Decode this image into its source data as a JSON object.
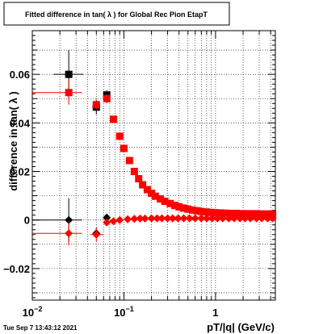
{
  "title": "Fitted difference in tan( λ ) for Global Rec Pion EtapT",
  "timestamp": "Tue Sep  7 13:43:12 2021",
  "colors": {
    "black": "#000000",
    "red": "#ff0000",
    "grid": "#000000"
  },
  "chart_data": {
    "type": "scatter",
    "title": "Fitted difference in tan( λ ) for Global Rec Pion EtapT",
    "xlabel": "pT/|q| (GeV/c)",
    "ylabel": "difference in tan( λ )",
    "xscale": "log",
    "xlim": [
      0.01,
      4.5
    ],
    "ylim": [
      -0.033,
      0.078
    ],
    "grid": true,
    "x_ticks": [
      {
        "value": 0.01,
        "label": "10",
        "exp": "−2"
      },
      {
        "value": 0.1,
        "label": "10",
        "exp": "−1"
      },
      {
        "value": 1,
        "label": "1",
        "exp": ""
      }
    ],
    "y_ticks": [
      {
        "value": -0.02,
        "label": "−0.02"
      },
      {
        "value": 0,
        "label": "0"
      },
      {
        "value": 0.02,
        "label": "0.02"
      },
      {
        "value": 0.04,
        "label": "0.04"
      },
      {
        "value": 0.06,
        "label": "0.06"
      }
    ],
    "series": [
      {
        "color": "#000000",
        "marker": "square",
        "points": [
          {
            "x": 0.025,
            "y": 0.06,
            "yerr": 0.01,
            "xerr_lo": 0.008,
            "xerr_hi": 0.011
          },
          {
            "x": 0.05,
            "y": 0.0465,
            "yerr": 0.003,
            "xerr_lo": 0.005,
            "xerr_hi": 0.005
          },
          {
            "x": 0.065,
            "y": 0.0515,
            "yerr": 0.002,
            "xerr_lo": 0.004,
            "xerr_hi": 0.004
          }
        ]
      },
      {
        "color": "#ff0000",
        "marker": "square",
        "points": [
          {
            "x": 0.025,
            "y": 0.0525,
            "yerr": 0.005,
            "xerr_lo": 0.023,
            "xerr_hi": 0.01
          },
          {
            "x": 0.05,
            "y": 0.0475,
            "yerr": 0.002
          },
          {
            "x": 0.065,
            "y": 0.05,
            "yerr": 0.002
          },
          {
            "x": 0.077,
            "y": 0.0415,
            "yerr": 0
          },
          {
            "x": 0.09,
            "y": 0.0345,
            "yerr": 0
          },
          {
            "x": 0.1,
            "y": 0.0295,
            "yerr": 0
          },
          {
            "x": 0.115,
            "y": 0.0245,
            "yerr": 0
          },
          {
            "x": 0.13,
            "y": 0.02,
            "yerr": 0
          },
          {
            "x": 0.145,
            "y": 0.017,
            "yerr": 0
          },
          {
            "x": 0.16,
            "y": 0.0145,
            "yerr": 0
          },
          {
            "x": 0.18,
            "y": 0.0125,
            "yerr": 0
          },
          {
            "x": 0.2,
            "y": 0.011,
            "yerr": 0
          },
          {
            "x": 0.22,
            "y": 0.0098,
            "yerr": 0
          },
          {
            "x": 0.25,
            "y": 0.0087,
            "yerr": 0
          },
          {
            "x": 0.28,
            "y": 0.0077,
            "yerr": 0
          },
          {
            "x": 0.32,
            "y": 0.0068,
            "yerr": 0
          },
          {
            "x": 0.36,
            "y": 0.006,
            "yerr": 0
          },
          {
            "x": 0.4,
            "y": 0.0054,
            "yerr": 0
          },
          {
            "x": 0.45,
            "y": 0.0049,
            "yerr": 0
          },
          {
            "x": 0.5,
            "y": 0.0045,
            "yerr": 0
          },
          {
            "x": 0.56,
            "y": 0.0041,
            "yerr": 0
          },
          {
            "x": 0.63,
            "y": 0.0038,
            "yerr": 0
          },
          {
            "x": 0.7,
            "y": 0.0035,
            "yerr": 0
          },
          {
            "x": 0.8,
            "y": 0.0033,
            "yerr": 0
          },
          {
            "x": 0.9,
            "y": 0.0031,
            "yerr": 0
          },
          {
            "x": 1.0,
            "y": 0.003,
            "yerr": 0
          },
          {
            "x": 1.15,
            "y": 0.0029,
            "yerr": 0
          },
          {
            "x": 1.3,
            "y": 0.0028,
            "yerr": 0
          },
          {
            "x": 1.5,
            "y": 0.0027,
            "yerr": 0
          },
          {
            "x": 1.7,
            "y": 0.0027,
            "yerr": 0
          },
          {
            "x": 2.0,
            "y": 0.0026,
            "yerr": 0
          },
          {
            "x": 2.3,
            "y": 0.0026,
            "yerr": 0
          },
          {
            "x": 2.7,
            "y": 0.0026,
            "yerr": 0
          },
          {
            "x": 3.1,
            "y": 0.0025,
            "yerr": 0
          },
          {
            "x": 3.6,
            "y": 0.0025,
            "yerr": 0
          },
          {
            "x": 4.2,
            "y": 0.0025,
            "yerr": 0
          }
        ]
      },
      {
        "color": "#000000",
        "marker": "diamond",
        "points": [
          {
            "x": 0.025,
            "y": 0.0,
            "yerr": 0.009,
            "xerr_lo": 0.023,
            "xerr_hi": 0.01
          },
          {
            "x": 0.05,
            "y": -0.0055,
            "yerr": 0.002
          },
          {
            "x": 0.065,
            "y": 0.001,
            "yerr": 0.001
          }
        ]
      },
      {
        "color": "#ff0000",
        "marker": "diamond",
        "points": [
          {
            "x": 0.025,
            "y": -0.0055,
            "yerr": 0.005,
            "xerr_lo": 0.023,
            "xerr_hi": 0.01
          },
          {
            "x": 0.05,
            "y": -0.006,
            "yerr": 0.003,
            "xerr_lo": 0.007,
            "xerr_hi": 0.01
          },
          {
            "x": 0.065,
            "y": -0.001,
            "yerr": 0.001
          },
          {
            "x": 0.077,
            "y": -0.0005,
            "yerr": 0
          },
          {
            "x": 0.09,
            "y": 0.0,
            "yerr": 0
          },
          {
            "x": 0.11,
            "y": 0.0003,
            "yerr": 0
          },
          {
            "x": 0.13,
            "y": 0.0005,
            "yerr": 0
          },
          {
            "x": 0.15,
            "y": 0.0006,
            "yerr": 0
          },
          {
            "x": 0.17,
            "y": 0.0006,
            "yerr": 0
          },
          {
            "x": 0.2,
            "y": 0.0007,
            "yerr": 0
          },
          {
            "x": 0.23,
            "y": 0.0007,
            "yerr": 0
          },
          {
            "x": 0.26,
            "y": 0.0007,
            "yerr": 0
          },
          {
            "x": 0.3,
            "y": 0.0007,
            "yerr": 0
          },
          {
            "x": 0.34,
            "y": 0.0007,
            "yerr": 0
          },
          {
            "x": 0.39,
            "y": 0.0007,
            "yerr": 0
          },
          {
            "x": 0.45,
            "y": 0.0007,
            "yerr": 0
          },
          {
            "x": 0.52,
            "y": 0.0007,
            "yerr": 0
          },
          {
            "x": 0.6,
            "y": 0.0007,
            "yerr": 0
          },
          {
            "x": 0.7,
            "y": 0.0007,
            "yerr": 0
          },
          {
            "x": 0.8,
            "y": 0.0007,
            "yerr": 0
          },
          {
            "x": 0.92,
            "y": 0.0007,
            "yerr": 0
          },
          {
            "x": 1.05,
            "y": 0.0007,
            "yerr": 0
          },
          {
            "x": 1.2,
            "y": 0.0007,
            "yerr": 0
          },
          {
            "x": 1.4,
            "y": 0.0007,
            "yerr": 0
          },
          {
            "x": 1.6,
            "y": 0.0007,
            "yerr": 0
          },
          {
            "x": 1.85,
            "y": 0.0007,
            "yerr": 0
          },
          {
            "x": 2.1,
            "y": 0.0007,
            "yerr": 0
          },
          {
            "x": 2.4,
            "y": 0.0007,
            "yerr": 0
          },
          {
            "x": 2.8,
            "y": 0.0007,
            "yerr": 0
          },
          {
            "x": 3.2,
            "y": 0.0007,
            "yerr": 0
          },
          {
            "x": 3.7,
            "y": 0.0007,
            "yerr": 0
          },
          {
            "x": 4.2,
            "y": 0.0007,
            "yerr": 0
          }
        ]
      }
    ]
  }
}
